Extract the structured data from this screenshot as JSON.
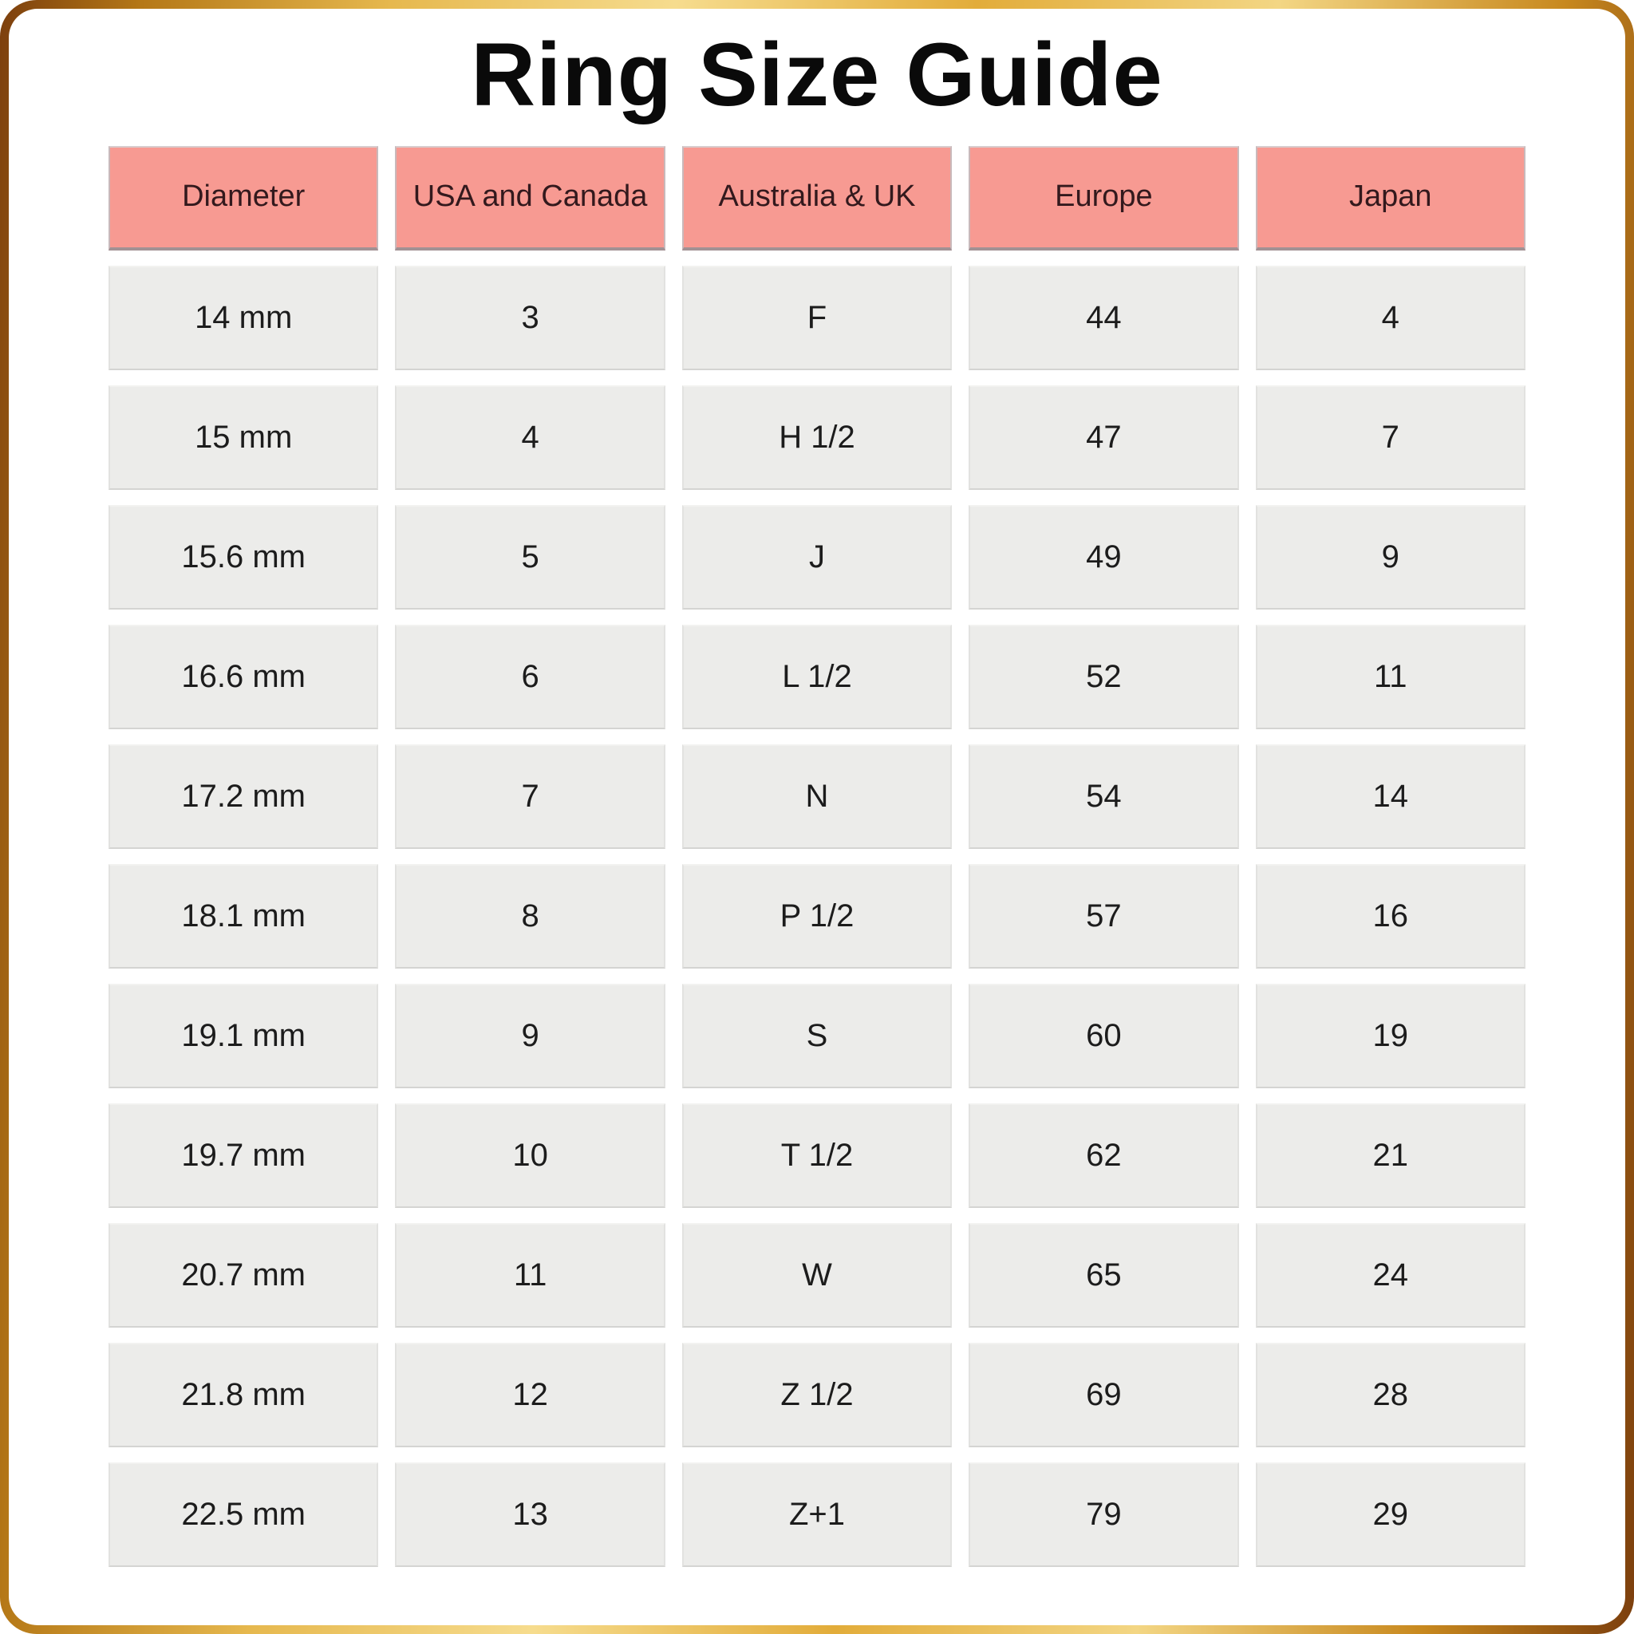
{
  "title": "Ring Size Guide",
  "chart_data": {
    "type": "table",
    "title": "Ring Size Guide",
    "columns": [
      "Diameter",
      "USA and Canada",
      "Australia & UK",
      "Europe",
      "Japan"
    ],
    "rows": [
      [
        "14 mm",
        "3",
        "F",
        "44",
        "4"
      ],
      [
        "15 mm",
        "4",
        "H 1/2",
        "47",
        "7"
      ],
      [
        "15.6 mm",
        "5",
        "J",
        "49",
        "9"
      ],
      [
        "16.6 mm",
        "6",
        "L 1/2",
        "52",
        "11"
      ],
      [
        "17.2 mm",
        "7",
        "N",
        "54",
        "14"
      ],
      [
        "18.1 mm",
        "8",
        "P 1/2",
        "57",
        "16"
      ],
      [
        "19.1 mm",
        "9",
        "S",
        "60",
        "19"
      ],
      [
        "19.7 mm",
        "10",
        "T 1/2",
        "62",
        "21"
      ],
      [
        "20.7 mm",
        "11",
        "W",
        "65",
        "24"
      ],
      [
        "21.8 mm",
        "12",
        "Z 1/2",
        "69",
        "28"
      ],
      [
        "22.5 mm",
        "13",
        "Z+1",
        "79",
        "29"
      ]
    ],
    "layout": {
      "legend": "none",
      "grid": "off",
      "header_position": "top"
    }
  },
  "colors": {
    "header_bg": "#f79a92",
    "header_text": "#33191d",
    "cell_bg": "#ececea",
    "cell_text": "#1c1c1c",
    "title_text": "#0a0a0a",
    "border_gold_dark": "#7c3f0d",
    "border_gold_light": "#f6dc8e",
    "page_bg": "#ffffff"
  }
}
